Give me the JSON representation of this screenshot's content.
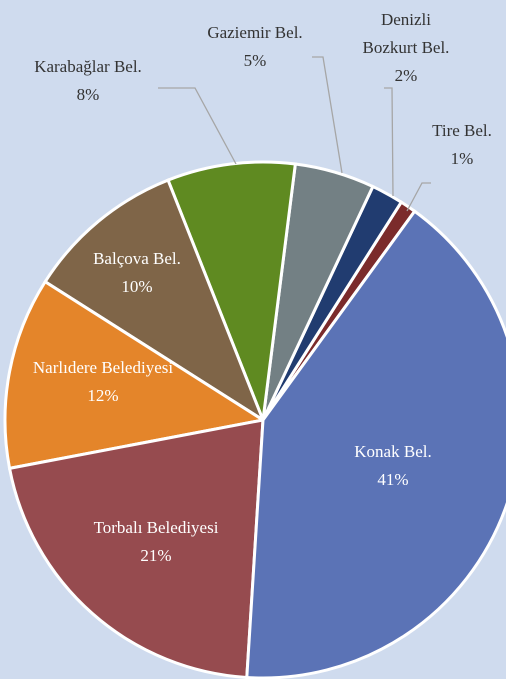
{
  "chart_data": {
    "type": "pie",
    "categories": [
      "Konak Bel.",
      "Torbalı Belediyesi",
      "Narlıdere Belediyesi",
      "Balçova Bel.",
      "Karabağlar Bel.",
      "Gaziemir Bel.",
      "Denizli Bozkurt Bel.",
      "Tire Bel."
    ],
    "values": [
      41,
      21,
      12,
      10,
      8,
      5,
      2,
      1
    ],
    "value_labels": [
      "41%",
      "21%",
      "12%",
      "10%",
      "8%",
      "5%",
      "2%",
      "1%"
    ],
    "colors": [
      "#5b73b6",
      "#964b4f",
      "#e4852a",
      "#7f6548",
      "#5f8a21",
      "#738084",
      "#213c70",
      "#7b2b2b"
    ]
  }
}
